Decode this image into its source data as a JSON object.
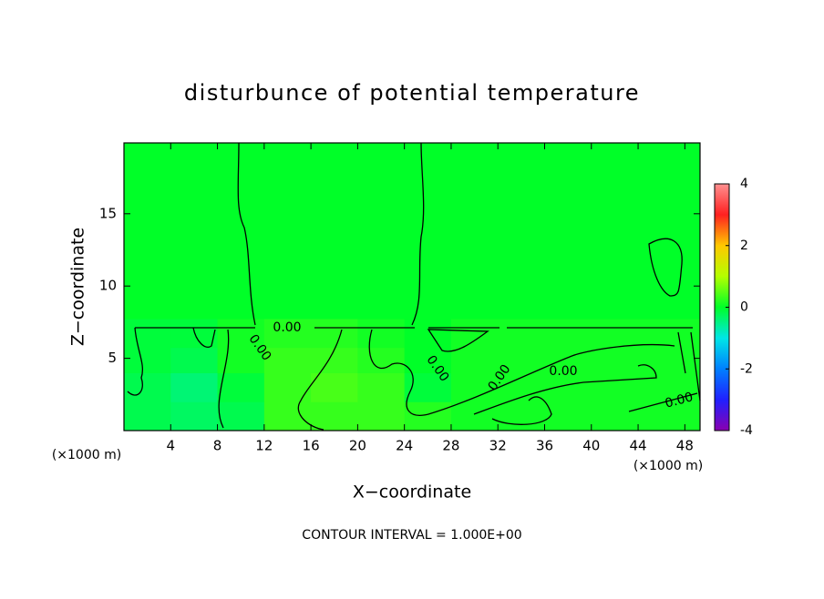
{
  "chart_data": {
    "type": "contour",
    "title": "disturbunce of potential temperature",
    "xlabel": "X−coordinate",
    "ylabel": "Z−coordinate",
    "xunit": "(×1000 m)",
    "yunit": "(×1000 m)",
    "footnote": "CONTOUR INTERVAL = 1.000E+00",
    "xlim": [
      0,
      49.3
    ],
    "ylim": [
      0,
      19.9
    ],
    "xticks": [
      4,
      8,
      12,
      16,
      20,
      24,
      28,
      32,
      36,
      40,
      44,
      48
    ],
    "yticks": [
      5,
      10,
      15
    ],
    "x": [
      2,
      6,
      10,
      14,
      18,
      22,
      26,
      30,
      34,
      38,
      42,
      46
    ],
    "y": [
      1,
      3,
      5,
      6.5,
      9,
      14,
      18
    ],
    "z": [
      [
        -0.2,
        -0.3,
        -0.2,
        0.3,
        0.3,
        0.3,
        0.2,
        0.1,
        0.1,
        0.1,
        0.1,
        0.1
      ],
      [
        -0.2,
        -0.4,
        -0.1,
        0.3,
        0.4,
        0.3,
        -0.1,
        0.1,
        0.1,
        0.1,
        0.1,
        0.1
      ],
      [
        -0.1,
        -0.2,
        0.1,
        0.3,
        0.3,
        0.2,
        0,
        0.1,
        0.1,
        0.1,
        0.1,
        0.1
      ],
      [
        -0.1,
        -0.1,
        0.1,
        0.2,
        0.2,
        0.1,
        0,
        0.1,
        0.1,
        0.1,
        0.1,
        0.1
      ],
      [
        0,
        0,
        0,
        0,
        0,
        0,
        0,
        0,
        0,
        0,
        0,
        0
      ],
      [
        0,
        0,
        0,
        0,
        0,
        0,
        0,
        0,
        0,
        0,
        0,
        0
      ],
      [
        0,
        0,
        0,
        0,
        0,
        0,
        0,
        0,
        0,
        0,
        0,
        0
      ]
    ],
    "contour_levels": [
      {
        "value": 0,
        "label": "0.00"
      }
    ],
    "colorbar": {
      "lim": [
        -4,
        4
      ],
      "ticks": [
        -4,
        -2,
        0,
        2,
        4
      ],
      "colormap": [
        "#8a00b0",
        "#2020ff",
        "#0080ff",
        "#00e6e6",
        "#00ff28",
        "#b4ff00",
        "#ffc800",
        "#ff2020",
        "#ff9090"
      ]
    }
  }
}
